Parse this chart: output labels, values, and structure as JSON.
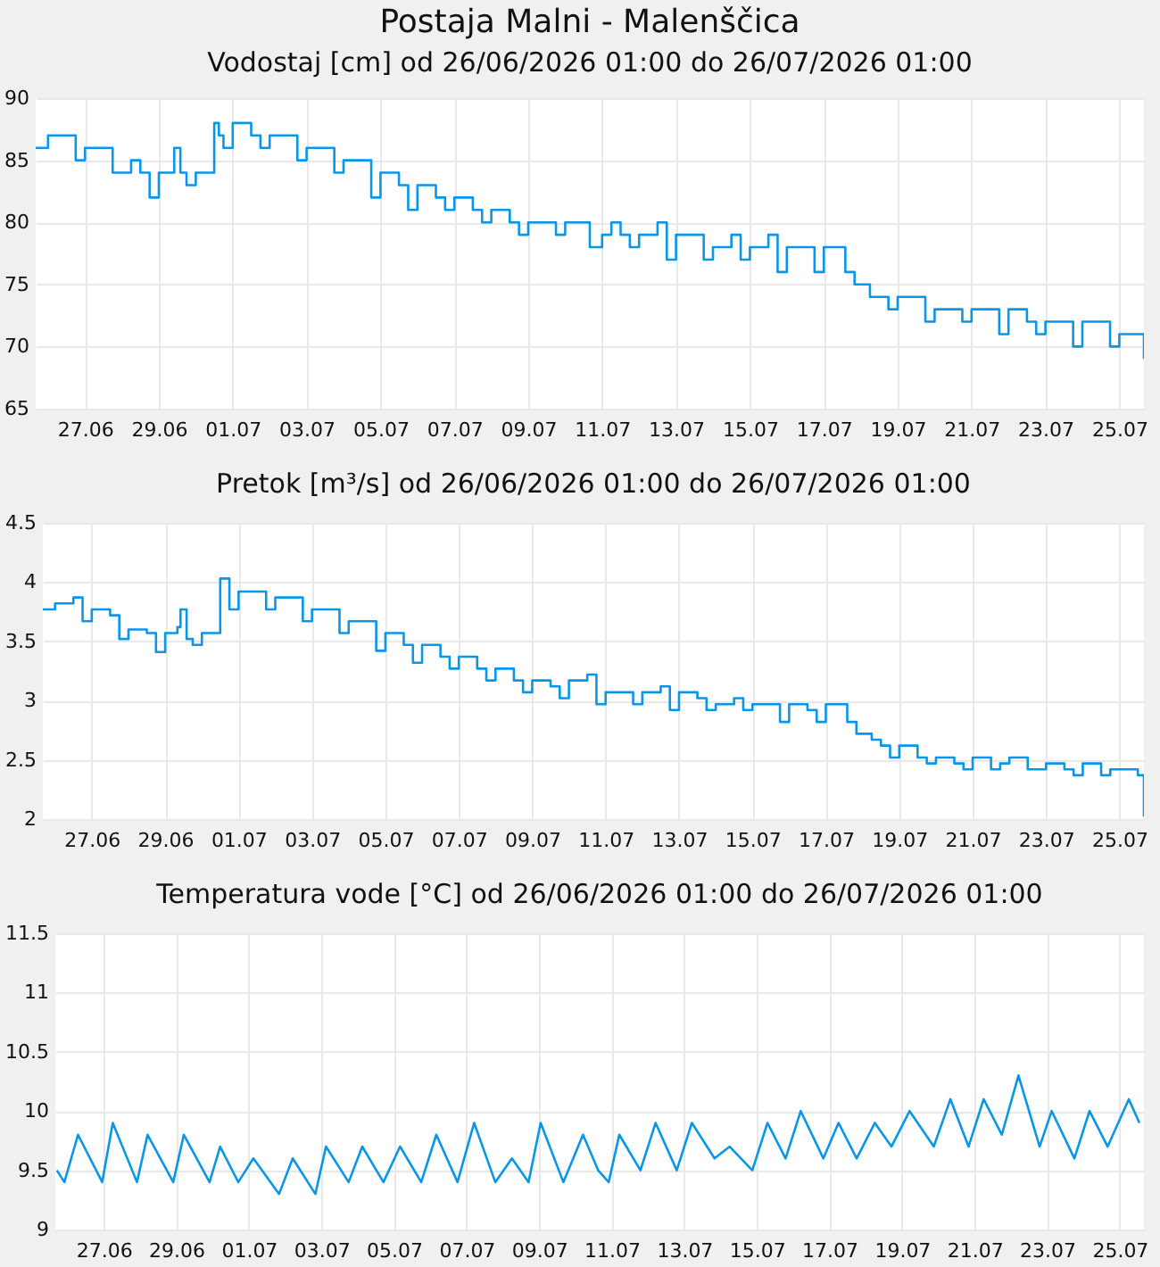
{
  "chart_data": [
    {
      "type": "step",
      "title": "Postaja Malni - Malenščica",
      "subtitle": "Vodostaj [cm] od 26/06/2026 01:00 do 26/07/2026 01:00",
      "color": "#0a96e8",
      "grid": true,
      "xlim": [
        "2026-06-25T16:00",
        "2026-07-25T16:00"
      ],
      "xticks": [
        {
          "value": "2026-06-27T00:00",
          "label": "27.06"
        },
        {
          "value": "2026-06-29T00:00",
          "label": "29.06"
        },
        {
          "value": "2026-07-01T00:00",
          "label": "01.07"
        },
        {
          "value": "2026-07-03T00:00",
          "label": "03.07"
        },
        {
          "value": "2026-07-05T00:00",
          "label": "05.07"
        },
        {
          "value": "2026-07-07T00:00",
          "label": "07.07"
        },
        {
          "value": "2026-07-09T00:00",
          "label": "09.07"
        },
        {
          "value": "2026-07-11T00:00",
          "label": "11.07"
        },
        {
          "value": "2026-07-13T00:00",
          "label": "13.07"
        },
        {
          "value": "2026-07-15T00:00",
          "label": "15.07"
        },
        {
          "value": "2026-07-17T00:00",
          "label": "17.07"
        },
        {
          "value": "2026-07-19T00:00",
          "label": "19.07"
        },
        {
          "value": "2026-07-21T00:00",
          "label": "21.07"
        },
        {
          "value": "2026-07-23T00:00",
          "label": "23.07"
        },
        {
          "value": "2026-07-25T00:00",
          "label": "25.07"
        }
      ],
      "ylim": [
        65,
        90
      ],
      "yticks": [
        65,
        70,
        75,
        80,
        85,
        90
      ],
      "x": [
        "2026-06-25T16:00",
        "2026-06-26T00:00",
        "2026-06-26T12:00",
        "2026-06-26T18:00",
        "2026-06-27T00:00",
        "2026-06-27T12:00",
        "2026-06-27T18:00",
        "2026-06-28T00:00",
        "2026-06-28T06:00",
        "2026-06-28T12:00",
        "2026-06-28T18:00",
        "2026-06-29T00:00",
        "2026-06-29T08:00",
        "2026-06-29T10:00",
        "2026-06-29T14:00",
        "2026-06-29T18:00",
        "2026-06-30T00:00",
        "2026-06-30T12:00",
        "2026-06-30T15:00",
        "2026-06-30T18:00",
        "2026-07-01T00:00",
        "2026-07-01T12:00",
        "2026-07-01T18:00",
        "2026-07-02T00:00",
        "2026-07-02T12:00",
        "2026-07-02T18:00",
        "2026-07-03T00:00",
        "2026-07-03T12:00",
        "2026-07-03T18:00",
        "2026-07-04T00:00",
        "2026-07-04T12:00",
        "2026-07-04T18:00",
        "2026-07-05T00:00",
        "2026-07-05T12:00",
        "2026-07-05T18:00",
        "2026-07-06T00:00",
        "2026-07-06T12:00",
        "2026-07-06T18:00",
        "2026-07-07T00:00",
        "2026-07-07T12:00",
        "2026-07-07T18:00",
        "2026-07-08T00:00",
        "2026-07-08T12:00",
        "2026-07-08T18:00",
        "2026-07-09T00:00",
        "2026-07-09T12:00",
        "2026-07-09T18:00",
        "2026-07-10T00:00",
        "2026-07-10T12:00",
        "2026-07-10T16:00",
        "2026-07-11T00:00",
        "2026-07-11T06:00",
        "2026-07-11T12:00",
        "2026-07-11T18:00",
        "2026-07-12T00:00",
        "2026-07-12T12:00",
        "2026-07-12T18:00",
        "2026-07-13T00:00",
        "2026-07-13T12:00",
        "2026-07-13T18:00",
        "2026-07-14T00:00",
        "2026-07-14T12:00",
        "2026-07-14T18:00",
        "2026-07-15T00:00",
        "2026-07-15T12:00",
        "2026-07-15T18:00",
        "2026-07-16T00:00",
        "2026-07-16T12:00",
        "2026-07-16T18:00",
        "2026-07-17T00:00",
        "2026-07-17T08:00",
        "2026-07-17T14:00",
        "2026-07-17T20:00",
        "2026-07-18T06:00",
        "2026-07-18T12:00",
        "2026-07-18T18:00",
        "2026-07-19T00:00",
        "2026-07-19T12:00",
        "2026-07-19T18:00",
        "2026-07-20T00:00",
        "2026-07-20T12:00",
        "2026-07-20T18:00",
        "2026-07-21T00:00",
        "2026-07-21T12:00",
        "2026-07-21T18:00",
        "2026-07-22T00:00",
        "2026-07-22T12:00",
        "2026-07-22T18:00",
        "2026-07-23T00:00",
        "2026-07-23T12:00",
        "2026-07-23T18:00",
        "2026-07-24T00:00",
        "2026-07-24T12:00",
        "2026-07-24T18:00",
        "2026-07-25T00:00",
        "2026-07-25T12:00",
        "2026-07-25T16:00"
      ],
      "values": [
        86,
        87,
        87,
        85,
        86,
        86,
        84,
        84,
        85,
        84,
        82,
        84,
        84,
        86,
        84,
        83,
        84,
        88,
        87,
        86,
        88,
        87,
        86,
        87,
        87,
        85,
        86,
        86,
        84,
        85,
        85,
        82,
        84,
        83,
        81,
        83,
        82,
        81,
        82,
        81,
        80,
        81,
        80,
        79,
        80,
        80,
        79,
        80,
        80,
        78,
        79,
        80,
        79,
        78,
        79,
        80,
        77,
        79,
        79,
        77,
        78,
        79,
        77,
        78,
        79,
        76,
        78,
        78,
        76,
        78,
        78,
        76,
        75,
        74,
        74,
        73,
        74,
        74,
        72,
        73,
        73,
        72,
        73,
        73,
        71,
        73,
        72,
        71,
        72,
        72,
        70,
        72,
        72,
        70,
        71,
        71,
        69
      ]
    },
    {
      "type": "step",
      "title": "Pretok [m³/s] od 26/06/2026 01:00 do 26/07/2026 01:00",
      "color": "#0a96e8",
      "grid": true,
      "xlim": [
        "2026-06-25T16:00",
        "2026-07-25T16:00"
      ],
      "xticks": [
        {
          "value": "2026-06-27T00:00",
          "label": "27.06"
        },
        {
          "value": "2026-06-29T00:00",
          "label": "29.06"
        },
        {
          "value": "2026-07-01T00:00",
          "label": "01.07"
        },
        {
          "value": "2026-07-03T00:00",
          "label": "03.07"
        },
        {
          "value": "2026-07-05T00:00",
          "label": "05.07"
        },
        {
          "value": "2026-07-07T00:00",
          "label": "07.07"
        },
        {
          "value": "2026-07-09T00:00",
          "label": "09.07"
        },
        {
          "value": "2026-07-11T00:00",
          "label": "11.07"
        },
        {
          "value": "2026-07-13T00:00",
          "label": "13.07"
        },
        {
          "value": "2026-07-15T00:00",
          "label": "15.07"
        },
        {
          "value": "2026-07-17T00:00",
          "label": "17.07"
        },
        {
          "value": "2026-07-19T00:00",
          "label": "19.07"
        },
        {
          "value": "2026-07-21T00:00",
          "label": "21.07"
        },
        {
          "value": "2026-07-23T00:00",
          "label": "23.07"
        },
        {
          "value": "2026-07-25T00:00",
          "label": "25.07"
        }
      ],
      "ylim": [
        2,
        4.5
      ],
      "yticks": [
        2,
        2.5,
        3,
        3.5,
        4,
        4.5
      ],
      "x": [
        "2026-06-25T16:00",
        "2026-06-26T00:00",
        "2026-06-26T12:00",
        "2026-06-26T18:00",
        "2026-06-27T00:00",
        "2026-06-27T12:00",
        "2026-06-27T18:00",
        "2026-06-28T00:00",
        "2026-06-28T12:00",
        "2026-06-28T18:00",
        "2026-06-29T00:00",
        "2026-06-29T08:00",
        "2026-06-29T10:00",
        "2026-06-29T14:00",
        "2026-06-29T18:00",
        "2026-06-30T00:00",
        "2026-06-30T12:00",
        "2026-06-30T18:00",
        "2026-07-01T00:00",
        "2026-07-01T12:00",
        "2026-07-01T18:00",
        "2026-07-02T00:00",
        "2026-07-02T12:00",
        "2026-07-02T18:00",
        "2026-07-03T00:00",
        "2026-07-03T12:00",
        "2026-07-03T18:00",
        "2026-07-04T00:00",
        "2026-07-04T12:00",
        "2026-07-04T18:00",
        "2026-07-05T00:00",
        "2026-07-05T12:00",
        "2026-07-05T18:00",
        "2026-07-06T00:00",
        "2026-07-06T12:00",
        "2026-07-06T18:00",
        "2026-07-07T00:00",
        "2026-07-07T12:00",
        "2026-07-07T18:00",
        "2026-07-08T00:00",
        "2026-07-08T12:00",
        "2026-07-08T18:00",
        "2026-07-09T00:00",
        "2026-07-09T12:00",
        "2026-07-09T18:00",
        "2026-07-10T00:00",
        "2026-07-10T12:00",
        "2026-07-10T18:00",
        "2026-07-11T00:00",
        "2026-07-11T12:00",
        "2026-07-11T18:00",
        "2026-07-12T00:00",
        "2026-07-12T12:00",
        "2026-07-12T18:00",
        "2026-07-13T00:00",
        "2026-07-13T12:00",
        "2026-07-13T18:00",
        "2026-07-14T00:00",
        "2026-07-14T12:00",
        "2026-07-14T18:00",
        "2026-07-15T00:00",
        "2026-07-15T12:00",
        "2026-07-15T18:00",
        "2026-07-16T00:00",
        "2026-07-16T12:00",
        "2026-07-16T18:00",
        "2026-07-17T00:00",
        "2026-07-17T08:00",
        "2026-07-17T14:00",
        "2026-07-17T20:00",
        "2026-07-18T06:00",
        "2026-07-18T12:00",
        "2026-07-18T18:00",
        "2026-07-19T00:00",
        "2026-07-19T12:00",
        "2026-07-19T18:00",
        "2026-07-20T00:00",
        "2026-07-20T12:00",
        "2026-07-20T18:00",
        "2026-07-21T00:00",
        "2026-07-21T12:00",
        "2026-07-21T18:00",
        "2026-07-22T00:00",
        "2026-07-22T12:00",
        "2026-07-22T18:00",
        "2026-07-23T00:00",
        "2026-07-23T12:00",
        "2026-07-23T18:00",
        "2026-07-24T00:00",
        "2026-07-24T12:00",
        "2026-07-24T18:00",
        "2026-07-25T00:00",
        "2026-07-25T12:00",
        "2026-07-25T16:00"
      ],
      "values": [
        3.77,
        3.82,
        3.87,
        3.67,
        3.77,
        3.72,
        3.52,
        3.6,
        3.57,
        3.41,
        3.57,
        3.62,
        3.77,
        3.52,
        3.47,
        3.57,
        4.03,
        3.77,
        3.92,
        3.92,
        3.77,
        3.87,
        3.87,
        3.67,
        3.77,
        3.77,
        3.57,
        3.67,
        3.67,
        3.42,
        3.57,
        3.47,
        3.32,
        3.47,
        3.37,
        3.27,
        3.37,
        3.27,
        3.17,
        3.27,
        3.17,
        3.07,
        3.17,
        3.12,
        3.02,
        3.17,
        3.22,
        2.97,
        3.07,
        3.07,
        2.97,
        3.07,
        3.12,
        2.92,
        3.07,
        3.02,
        2.92,
        2.97,
        3.02,
        2.92,
        2.97,
        2.97,
        2.82,
        2.97,
        2.92,
        2.82,
        2.97,
        2.97,
        2.82,
        2.72,
        2.67,
        2.62,
        2.52,
        2.62,
        2.52,
        2.47,
        2.52,
        2.47,
        2.42,
        2.52,
        2.42,
        2.47,
        2.52,
        2.42,
        2.42,
        2.47,
        2.42,
        2.37,
        2.47,
        2.37,
        2.42,
        2.42,
        2.37,
        2.02
      ]
    },
    {
      "type": "line",
      "title": "Temperatura vode [°C] od 26/06/2026 01:00 do 26/07/2026 01:00",
      "color": "#0a96e8",
      "grid": true,
      "xlim": [
        "2026-06-25T16:00",
        "2026-07-25T16:00"
      ],
      "xticks": [
        {
          "value": "2026-06-27T00:00",
          "label": "27.06"
        },
        {
          "value": "2026-06-29T00:00",
          "label": "29.06"
        },
        {
          "value": "2026-07-01T00:00",
          "label": "01.07"
        },
        {
          "value": "2026-07-03T00:00",
          "label": "03.07"
        },
        {
          "value": "2026-07-05T00:00",
          "label": "05.07"
        },
        {
          "value": "2026-07-07T00:00",
          "label": "07.07"
        },
        {
          "value": "2026-07-09T00:00",
          "label": "09.07"
        },
        {
          "value": "2026-07-11T00:00",
          "label": "11.07"
        },
        {
          "value": "2026-07-13T00:00",
          "label": "13.07"
        },
        {
          "value": "2026-07-15T00:00",
          "label": "15.07"
        },
        {
          "value": "2026-07-17T00:00",
          "label": "17.07"
        },
        {
          "value": "2026-07-19T00:00",
          "label": "19.07"
        },
        {
          "value": "2026-07-21T00:00",
          "label": "21.07"
        },
        {
          "value": "2026-07-23T00:00",
          "label": "23.07"
        },
        {
          "value": "2026-07-25T00:00",
          "label": "25.07"
        }
      ],
      "ylim": [
        9,
        11.5
      ],
      "yticks": [
        9,
        9.5,
        10,
        10.5,
        11,
        11.5
      ],
      "x": [
        "2026-06-25T17:00",
        "2026-06-25T22:00",
        "2026-06-26T07:00",
        "2026-06-26T23:00",
        "2026-06-27T06:00",
        "2026-06-27T22:00",
        "2026-06-28T05:00",
        "2026-06-28T22:00",
        "2026-06-29T05:00",
        "2026-06-29T22:00",
        "2026-06-30T05:00",
        "2026-06-30T17:00",
        "2026-07-01T03:00",
        "2026-07-01T20:00",
        "2026-07-02T05:00",
        "2026-07-02T20:00",
        "2026-07-03T03:00",
        "2026-07-03T18:00",
        "2026-07-04T03:00",
        "2026-07-04T17:00",
        "2026-07-05T04:00",
        "2026-07-05T18:00",
        "2026-07-06T04:00",
        "2026-07-06T18:00",
        "2026-07-07T05:00",
        "2026-07-07T19:00",
        "2026-07-08T06:00",
        "2026-07-08T17:00",
        "2026-07-09T01:00",
        "2026-07-09T16:00",
        "2026-07-10T05:00",
        "2026-07-10T15:00",
        "2026-07-10T22:00",
        "2026-07-11T05:00",
        "2026-07-11T19:00",
        "2026-07-12T05:00",
        "2026-07-12T19:00",
        "2026-07-13T05:00",
        "2026-07-13T20:00",
        "2026-07-14T06:00",
        "2026-07-14T21:00",
        "2026-07-15T07:00",
        "2026-07-15T19:00",
        "2026-07-16T05:00",
        "2026-07-16T20:00",
        "2026-07-17T06:00",
        "2026-07-17T18:00",
        "2026-07-18T06:00",
        "2026-07-18T17:00",
        "2026-07-19T05:00",
        "2026-07-19T21:00",
        "2026-07-20T08:00",
        "2026-07-20T20:00",
        "2026-07-21T06:00",
        "2026-07-21T18:00",
        "2026-07-22T05:00",
        "2026-07-22T19:00",
        "2026-07-23T03:00",
        "2026-07-23T18:00",
        "2026-07-24T04:00",
        "2026-07-24T16:00",
        "2026-07-25T06:00",
        "2026-07-25T13:00"
      ],
      "values": [
        9.5,
        9.4,
        9.8,
        9.4,
        9.9,
        9.4,
        9.8,
        9.4,
        9.8,
        9.4,
        9.7,
        9.4,
        9.6,
        9.3,
        9.6,
        9.3,
        9.7,
        9.4,
        9.7,
        9.4,
        9.7,
        9.4,
        9.8,
        9.4,
        9.9,
        9.4,
        9.6,
        9.4,
        9.9,
        9.4,
        9.8,
        9.5,
        9.4,
        9.8,
        9.5,
        9.9,
        9.5,
        9.9,
        9.6,
        9.7,
        9.5,
        9.9,
        9.6,
        10.0,
        9.6,
        9.9,
        9.6,
        9.9,
        9.7,
        10.0,
        9.7,
        10.1,
        9.7,
        10.1,
        9.8,
        10.3,
        9.7,
        10.0,
        9.6,
        10.0,
        9.7,
        10.1,
        9.9
      ]
    }
  ]
}
